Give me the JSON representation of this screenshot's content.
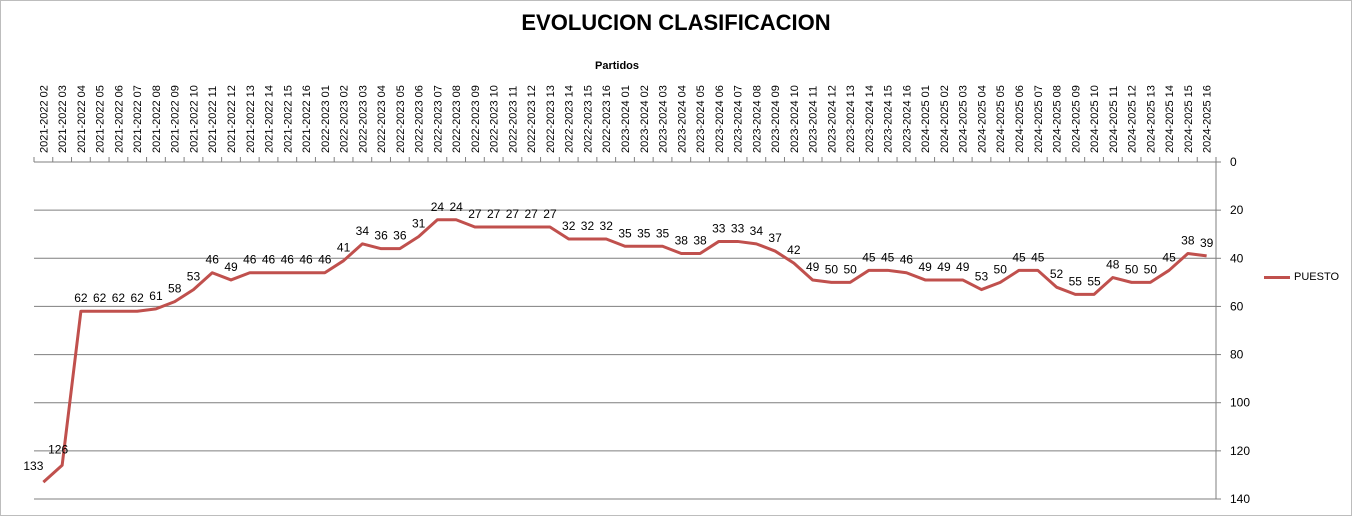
{
  "chart_data": {
    "type": "line",
    "title": "EVOLUCION CLASIFICACION",
    "xlabel": "Partidos",
    "ylabel": "",
    "y_inverted": true,
    "ylim": [
      0,
      140
    ],
    "yticks": [
      0,
      20,
      40,
      60,
      80,
      100,
      120,
      140
    ],
    "x_axis_position": "top",
    "y_axis_position": "right",
    "grid": "horizontal",
    "legend_position": "right",
    "categories": [
      "2021-2022 02",
      "2021-2022 03",
      "2021-2022 04",
      "2021-2022 05",
      "2021-2022 06",
      "2021-2022 07",
      "2021-2022 08",
      "2021-2022 09",
      "2021-2022 10",
      "2021-2022 11",
      "2021-2022 12",
      "2021-2022 13",
      "2021-2022 14",
      "2021-2022 15",
      "2021-2022 16",
      "2022-2023 01",
      "2022-2023 02",
      "2022-2023 03",
      "2022-2023 04",
      "2022-2023 05",
      "2022-2023 06",
      "2022-2023 07",
      "2022-2023 08",
      "2022-2023 09",
      "2022-2023 10",
      "2022-2023 11",
      "2022-2023 12",
      "2022-2023 13",
      "2022-2023 14",
      "2022-2023 15",
      "2022-2023 16",
      "2023-2024 01",
      "2023-2024 02",
      "2023-2024 03",
      "2023-2024 04",
      "2023-2024 05",
      "2023-2024 06",
      "2023-2024 07",
      "2023-2024 08",
      "2023-2024 09",
      "2023-2024 10",
      "2023-2024 11",
      "2023-2024 12",
      "2023-2024 13",
      "2023-2024 14",
      "2023-2024 15",
      "2023-2024 16",
      "2024-2025 01",
      "2024-2025 02",
      "2024-2025 03",
      "2024-2025 04",
      "2024-2025 05",
      "2024-2025 06",
      "2024-2025 07",
      "2024-2025 08",
      "2024-2025 09",
      "2024-2025 10",
      "2024-2025 11",
      "2024-2025 12",
      "2024-2025 13",
      "2024-2025 14",
      "2024-2025 15",
      "2024-2025 16"
    ],
    "series": [
      {
        "name": "PUESTO",
        "color": "#c0504d",
        "values": [
          133,
          126,
          62,
          62,
          62,
          62,
          61,
          58,
          53,
          46,
          49,
          46,
          46,
          46,
          46,
          46,
          41,
          34,
          36,
          36,
          31,
          24,
          24,
          27,
          27,
          27,
          27,
          27,
          32,
          32,
          32,
          35,
          35,
          35,
          38,
          38,
          33,
          33,
          34,
          37,
          42,
          49,
          50,
          50,
          45,
          45,
          46,
          49,
          49,
          49,
          53,
          50,
          45,
          45,
          52,
          55,
          55,
          48,
          50,
          50,
          45,
          38,
          39
        ]
      }
    ]
  }
}
